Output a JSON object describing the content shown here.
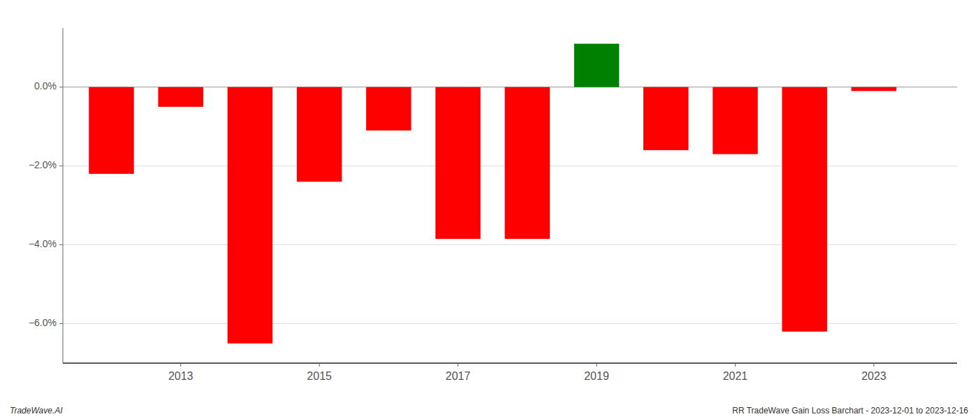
{
  "chart_data": {
    "type": "bar",
    "x": [
      2012,
      2013,
      2014,
      2015,
      2016,
      2017,
      2018,
      2019,
      2020,
      2021,
      2022,
      2023
    ],
    "values": [
      -2.2,
      -0.5,
      -6.5,
      -2.4,
      -1.1,
      -3.85,
      -3.85,
      1.1,
      -1.6,
      -1.7,
      -6.2,
      -0.1
    ],
    "colors": [
      "#ff0000",
      "#ff0000",
      "#ff0000",
      "#ff0000",
      "#ff0000",
      "#ff0000",
      "#ff0000",
      "#008000",
      "#ff0000",
      "#ff0000",
      "#ff0000",
      "#ff0000"
    ],
    "xlim": [
      2011.3,
      2024.2
    ],
    "xticks": [
      2013,
      2015,
      2017,
      2019,
      2021,
      2023
    ],
    "ylim": [
      -7.0,
      1.5
    ],
    "yticks": [
      {
        "value": 0.0,
        "label": "0.0%"
      },
      {
        "value": -2.0,
        "label": "−2.0%"
      },
      {
        "value": -4.0,
        "label": "−4.0%"
      },
      {
        "value": -6.0,
        "label": "−6.0%"
      }
    ],
    "grid": true,
    "annotations": [
      "TradeWave.AI",
      "RR TradeWave Gain Loss Barchart - 2023-12-01 to 2023-12-16"
    ]
  }
}
